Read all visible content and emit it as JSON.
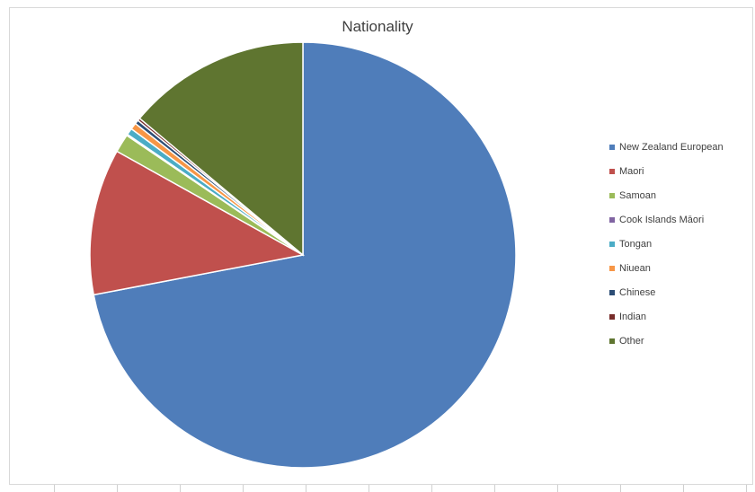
{
  "chart_data": {
    "type": "pie",
    "title": "Nationality",
    "legend_position": "right",
    "start_angle": "top",
    "direction": "clockwise",
    "slices": [
      {
        "label": "New Zealand European",
        "value": 72.0,
        "color": "#4F7DBA"
      },
      {
        "label": "Maori",
        "value": 11.1,
        "color": "#C0504D"
      },
      {
        "label": "Samoan",
        "value": 1.4,
        "color": "#9BBB59"
      },
      {
        "label": "Cook Islands Māori",
        "value": 0.1,
        "color": "#8064A2"
      },
      {
        "label": "Tongan",
        "value": 0.5,
        "color": "#4BACC6"
      },
      {
        "label": "Niuean",
        "value": 0.5,
        "color": "#F79646"
      },
      {
        "label": "Chinese",
        "value": 0.3,
        "color": "#2C4D75"
      },
      {
        "label": "Indian",
        "value": 0.2,
        "color": "#772C2A"
      },
      {
        "label": "Other",
        "value": 13.9,
        "color": "#5F7530"
      }
    ]
  }
}
